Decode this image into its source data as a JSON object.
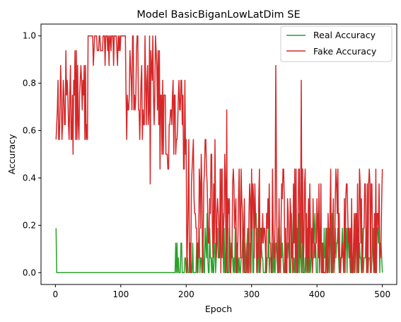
{
  "chart_data": {
    "type": "line",
    "title": "Model BasicBiganLowLatDim SE",
    "xlabel": "Epoch",
    "ylabel": "Accuracy",
    "xlim": [
      -22,
      522
    ],
    "ylim": [
      -0.05,
      1.05
    ],
    "xticks": [
      0,
      100,
      200,
      300,
      400,
      500
    ],
    "yticks": [
      0.0,
      0.2,
      0.4,
      0.6,
      0.8,
      1.0
    ],
    "grid": false,
    "legend_position": "top-right",
    "series": [
      {
        "name": "Real Accuracy",
        "color": "#2ca02c",
        "sample_interval": 1,
        "description": "generated",
        "seed": 7
      },
      {
        "name": "Fake Accuracy",
        "color": "#d62728",
        "seed": 13
      }
    ]
  }
}
